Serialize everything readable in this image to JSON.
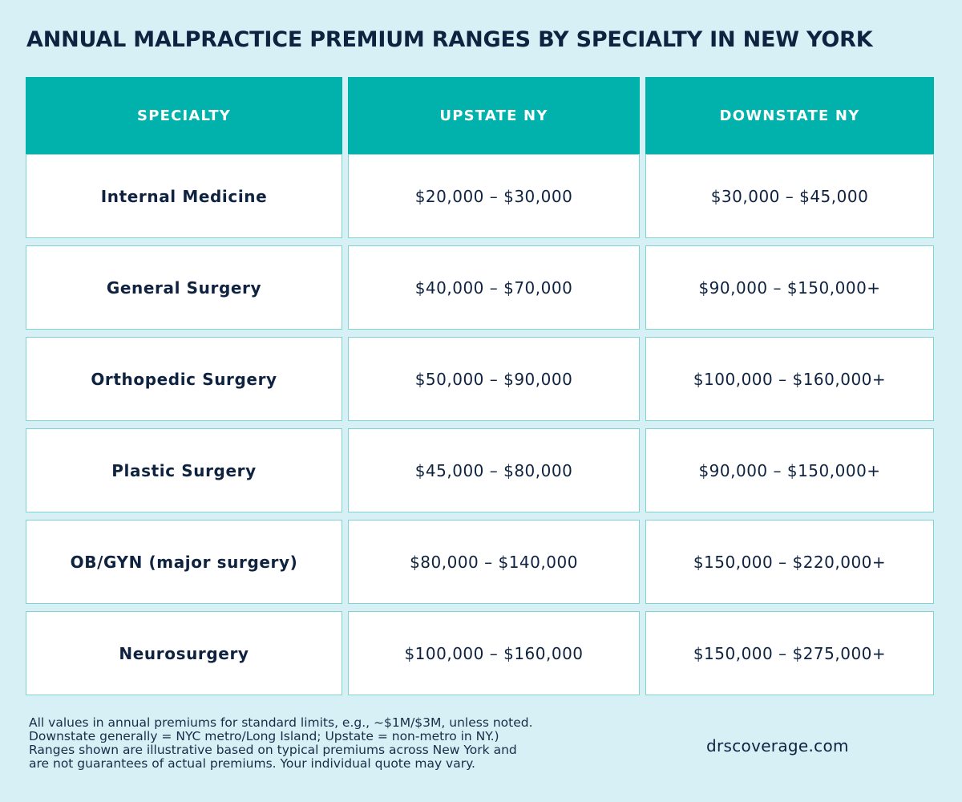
{
  "title": "ANNUAL MALPRACTICE PREMIUM RANGES BY SPECIALTY IN NEW YORK",
  "table": {
    "headers": [
      "SPECIALTY",
      "UPSTATE NY",
      "DOWNSTATE NY"
    ],
    "rows": [
      {
        "specialty": "Internal Medicine",
        "upstate": "$20,000 – $30,000",
        "downstate": "$30,000 – $45,000"
      },
      {
        "specialty": "General Surgery",
        "upstate": "$40,000 – $70,000",
        "downstate": "$90,000 – $150,000+"
      },
      {
        "specialty": "Orthopedic Surgery",
        "upstate": "$50,000 – $90,000",
        "downstate": "$100,000 – $160,000+"
      },
      {
        "specialty": "Plastic Surgery",
        "upstate": "$45,000 – $80,000",
        "downstate": "$90,000 – $150,000+"
      },
      {
        "specialty": "OB/GYN (major surgery)",
        "upstate": "$80,000 – $140,000",
        "downstate": "$150,000 – $220,000+"
      },
      {
        "specialty": "Neurosurgery",
        "upstate": "$100,000 – $160,000",
        "downstate": "$150,000 – $275,000+"
      }
    ]
  },
  "footnote": [
    "All values in annual premiums for standard limits, e.g., ~$1M/$3M, unless noted.",
    "Downstate generally = NYC metro/Long Island; Upstate = non-metro in NY.)",
    "Ranges shown are illustrative based on typical premiums across New York and",
    "are not guarantees of actual premiums. Your individual quote may vary."
  ],
  "website": "drscoverage.com",
  "colors": {
    "background": "#d6f0f6",
    "header": "#00b2ab",
    "text": "#0f2340",
    "cell_border": "#7fd3d0"
  }
}
